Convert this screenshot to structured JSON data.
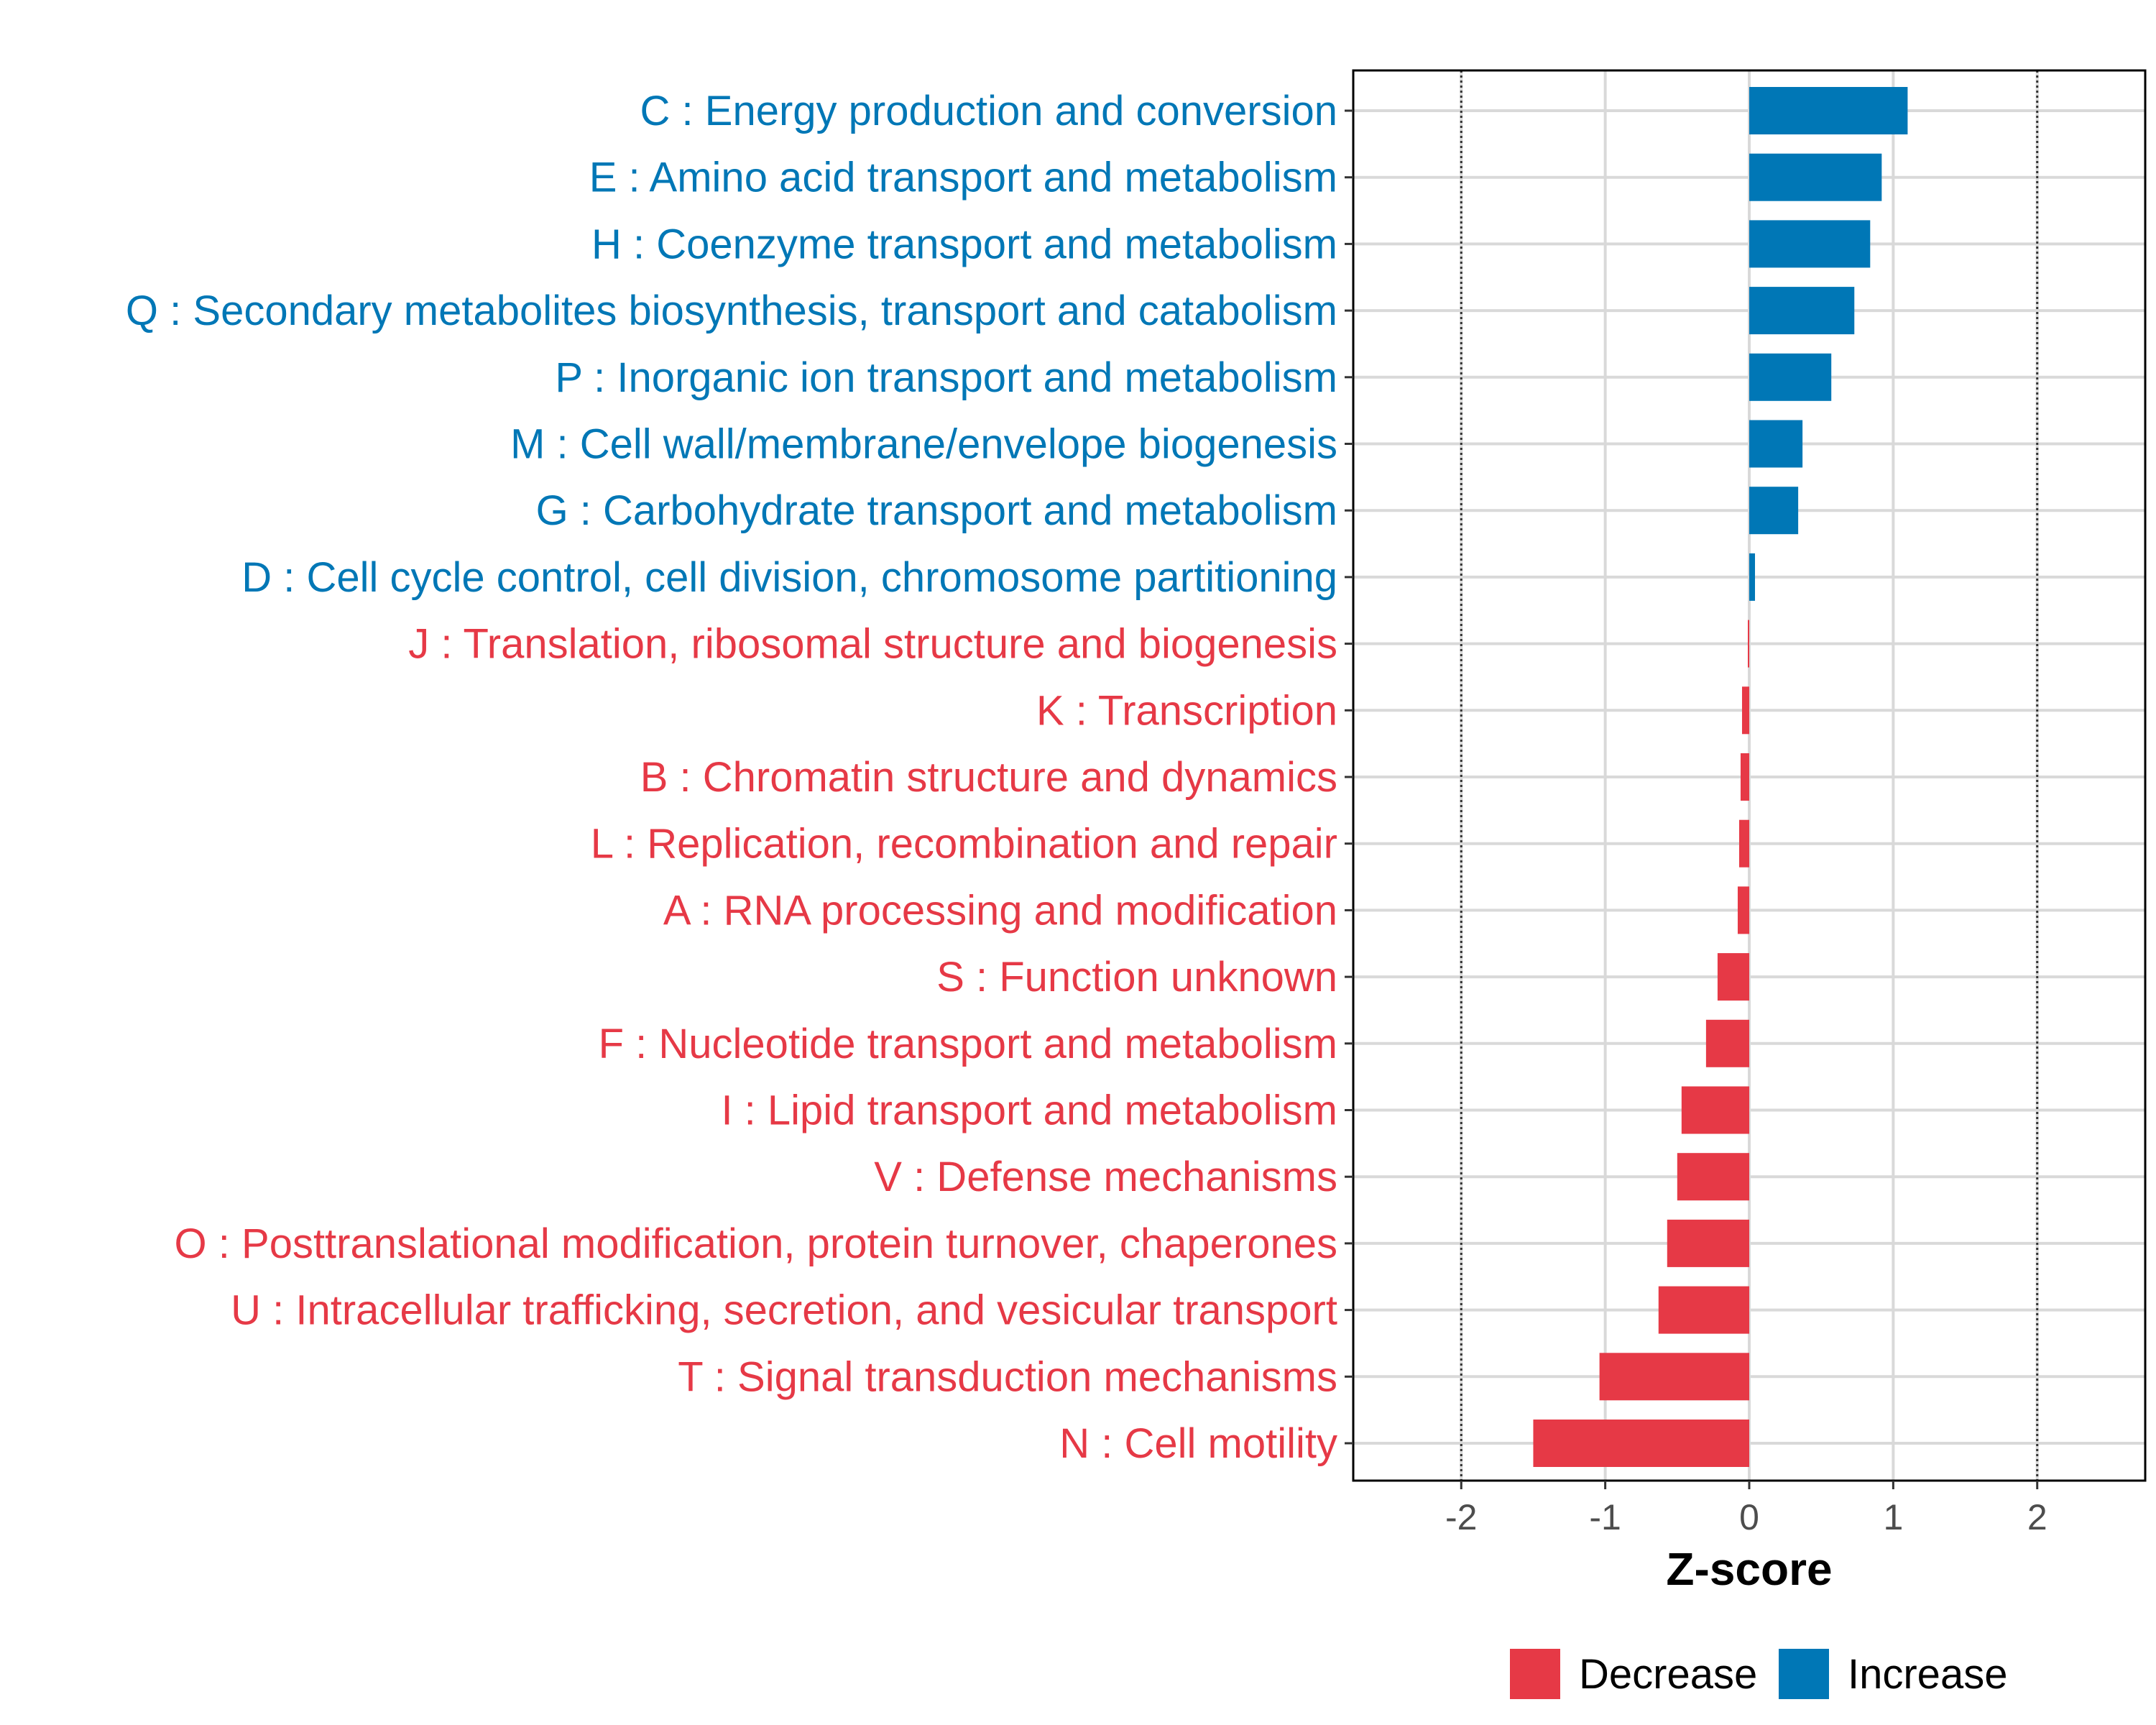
{
  "chart_data": {
    "type": "bar",
    "orientation": "horizontal",
    "title": "",
    "xlabel": "Z-score",
    "ylabel": "",
    "xlim": [
      -2.75,
      2.75
    ],
    "xticks": [
      -2,
      -1,
      0,
      1,
      2
    ],
    "xtick_labels": [
      "-2",
      "-1",
      "0",
      "1",
      "2"
    ],
    "reference_lines": [
      -2,
      2
    ],
    "grid": true,
    "legend_position": "bottom",
    "colors": {
      "Decrease": "#e63946",
      "Increase": "#0077b6"
    },
    "categories": [
      "C : Energy production and conversion",
      "E : Amino acid transport and metabolism",
      "H : Coenzyme transport and metabolism",
      "Q : Secondary metabolites biosynthesis, transport and catabolism",
      "P : Inorganic ion transport and metabolism",
      "M : Cell wall/membrane/envelope biogenesis",
      "G : Carbohydrate transport and metabolism",
      "D : Cell cycle control, cell division, chromosome partitioning",
      "J : Translation, ribosomal structure and biogenesis",
      "K : Transcription",
      "B : Chromatin structure and dynamics",
      "L : Replication, recombination and repair",
      "A : RNA processing and modification",
      "S : Function unknown",
      "F : Nucleotide transport and metabolism",
      "I : Lipid transport and metabolism",
      "V : Defense mechanisms",
      "O : Posttranslational modification, protein turnover, chaperones",
      "U : Intracellular trafficking, secretion, and vesicular transport",
      "T : Signal transduction mechanisms",
      "N : Cell motility"
    ],
    "values": [
      1.1,
      0.92,
      0.84,
      0.73,
      0.57,
      0.37,
      0.34,
      0.04,
      -0.01,
      -0.05,
      -0.06,
      -0.07,
      -0.08,
      -0.22,
      -0.3,
      -0.47,
      -0.5,
      -0.57,
      -0.63,
      -1.04,
      -1.5
    ],
    "groups": [
      "Increase",
      "Increase",
      "Increase",
      "Increase",
      "Increase",
      "Increase",
      "Increase",
      "Increase",
      "Decrease",
      "Decrease",
      "Decrease",
      "Decrease",
      "Decrease",
      "Decrease",
      "Decrease",
      "Decrease",
      "Decrease",
      "Decrease",
      "Decrease",
      "Decrease",
      "Decrease"
    ],
    "legend": [
      {
        "label": "Decrease",
        "color": "#e63946"
      },
      {
        "label": "Increase",
        "color": "#0077b6"
      }
    ]
  }
}
